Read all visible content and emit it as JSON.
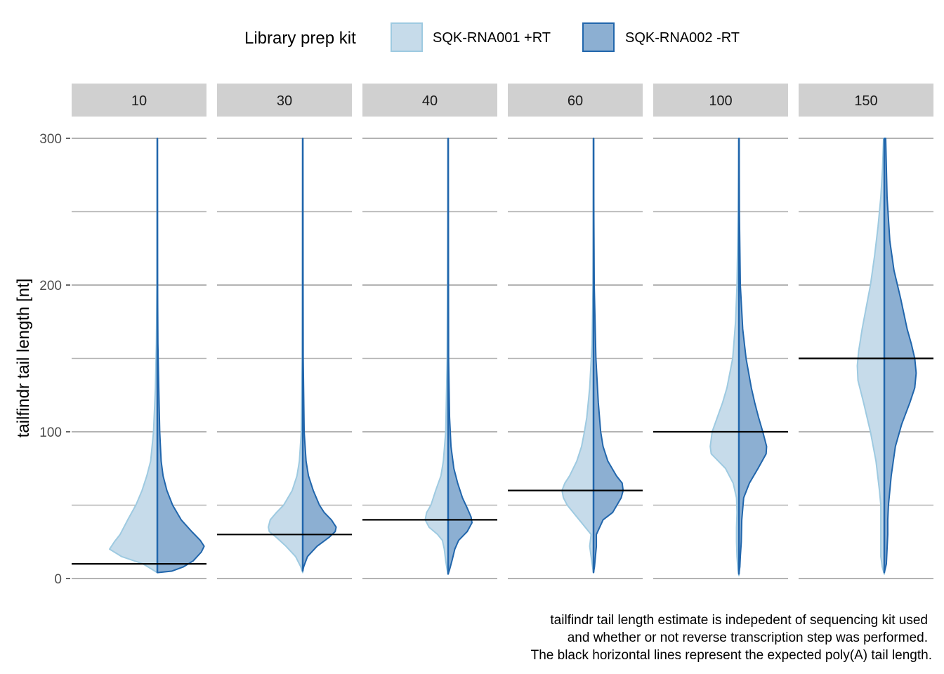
{
  "chart_data": {
    "type": "violin",
    "ylabel": "tailfindr tail length [nt]",
    "ylim": [
      0,
      300
    ],
    "y_ticks": [
      0,
      100,
      200,
      300
    ],
    "grid": true,
    "legend": {
      "title": "Library prep kit",
      "placement": "top",
      "entries": [
        "SQK-RNA001 +RT",
        "SQK-RNA002 -RT"
      ]
    },
    "facets": [
      "10",
      "30",
      "40",
      "60",
      "100",
      "150"
    ],
    "expected_lengths": [
      10,
      30,
      40,
      60,
      100,
      150
    ],
    "caption": [
      "tailfindr tail length estimate is indepedent of sequencing kit used",
      "and whether or not reverse transcription step was performed.",
      "The black horizontal lines represent the expected poly(A) tail length."
    ],
    "series": [
      {
        "name": "SQK-RNA001 +RT",
        "side": "left",
        "fill": "#c6dbea",
        "stroke": "#9ecae1",
        "profiles": [
          [
            [
              4,
              0
            ],
            [
              6,
              0.1
            ],
            [
              10,
              0.3
            ],
            [
              15,
              0.75
            ],
            [
              20,
              1.0
            ],
            [
              25,
              0.9
            ],
            [
              30,
              0.78
            ],
            [
              40,
              0.62
            ],
            [
              50,
              0.45
            ],
            [
              60,
              0.32
            ],
            [
              70,
              0.22
            ],
            [
              80,
              0.14
            ],
            [
              100,
              0.08
            ],
            [
              130,
              0.04
            ],
            [
              160,
              0.02
            ],
            [
              200,
              0.008
            ],
            [
              260,
              0.003
            ],
            [
              300,
              0
            ]
          ],
          [
            [
              4,
              0
            ],
            [
              8,
              0.04
            ],
            [
              15,
              0.15
            ],
            [
              22,
              0.35
            ],
            [
              28,
              0.55
            ],
            [
              32,
              0.7
            ],
            [
              35,
              0.72
            ],
            [
              40,
              0.68
            ],
            [
              45,
              0.55
            ],
            [
              50,
              0.4
            ],
            [
              60,
              0.22
            ],
            [
              70,
              0.12
            ],
            [
              80,
              0.07
            ],
            [
              100,
              0.03
            ],
            [
              150,
              0.01
            ],
            [
              300,
              0
            ]
          ],
          [
            [
              3,
              0
            ],
            [
              6,
              0.02
            ],
            [
              12,
              0.05
            ],
            [
              20,
              0.08
            ],
            [
              26,
              0.12
            ],
            [
              30,
              0.22
            ],
            [
              35,
              0.4
            ],
            [
              40,
              0.48
            ],
            [
              45,
              0.45
            ],
            [
              50,
              0.36
            ],
            [
              60,
              0.26
            ],
            [
              70,
              0.15
            ],
            [
              80,
              0.1
            ],
            [
              100,
              0.05
            ],
            [
              150,
              0.02
            ],
            [
              300,
              0
            ]
          ],
          [
            [
              4,
              0
            ],
            [
              8,
              0.02
            ],
            [
              15,
              0.05
            ],
            [
              22,
              0.08
            ],
            [
              30,
              0.05
            ],
            [
              40,
              0.3
            ],
            [
              50,
              0.55
            ],
            [
              55,
              0.63
            ],
            [
              60,
              0.66
            ],
            [
              65,
              0.6
            ],
            [
              70,
              0.5
            ],
            [
              80,
              0.35
            ],
            [
              90,
              0.25
            ],
            [
              100,
              0.19
            ],
            [
              110,
              0.14
            ],
            [
              130,
              0.08
            ],
            [
              160,
              0.03
            ],
            [
              200,
              0.01
            ],
            [
              260,
              0.003
            ],
            [
              300,
              0
            ]
          ],
          [
            [
              2,
              0
            ],
            [
              6,
              0.02
            ],
            [
              15,
              0.04
            ],
            [
              25,
              0.05
            ],
            [
              35,
              0.05
            ],
            [
              45,
              0.04
            ],
            [
              55,
              0.05
            ],
            [
              65,
              0.12
            ],
            [
              75,
              0.28
            ],
            [
              85,
              0.58
            ],
            [
              90,
              0.6
            ],
            [
              95,
              0.58
            ],
            [
              100,
              0.56
            ],
            [
              110,
              0.45
            ],
            [
              120,
              0.34
            ],
            [
              130,
              0.25
            ],
            [
              150,
              0.13
            ],
            [
              175,
              0.07
            ],
            [
              200,
              0.04
            ],
            [
              250,
              0.015
            ],
            [
              300,
              0.002
            ]
          ],
          [
            [
              3,
              0
            ],
            [
              8,
              0.03
            ],
            [
              15,
              0.05
            ],
            [
              25,
              0.05
            ],
            [
              35,
              0.05
            ],
            [
              50,
              0.05
            ],
            [
              60,
              0.07
            ],
            [
              80,
              0.12
            ],
            [
              100,
              0.2
            ],
            [
              120,
              0.3
            ],
            [
              135,
              0.38
            ],
            [
              145,
              0.39
            ],
            [
              155,
              0.37
            ],
            [
              170,
              0.32
            ],
            [
              185,
              0.26
            ],
            [
              200,
              0.2
            ],
            [
              220,
              0.14
            ],
            [
              240,
              0.09
            ],
            [
              260,
              0.05
            ],
            [
              280,
              0.025
            ],
            [
              300,
              0.01
            ]
          ]
        ]
      },
      {
        "name": "SQK-RNA002 -RT",
        "side": "right",
        "fill": "#8cafd2",
        "stroke": "#2166ac",
        "profiles": [
          [
            [
              4,
              0
            ],
            [
              5,
              0.3
            ],
            [
              8,
              0.55
            ],
            [
              12,
              0.75
            ],
            [
              18,
              0.92
            ],
            [
              22,
              0.98
            ],
            [
              26,
              0.9
            ],
            [
              32,
              0.72
            ],
            [
              40,
              0.5
            ],
            [
              50,
              0.32
            ],
            [
              60,
              0.2
            ],
            [
              70,
              0.12
            ],
            [
              80,
              0.08
            ],
            [
              100,
              0.05
            ],
            [
              130,
              0.03
            ],
            [
              160,
              0.012
            ],
            [
              200,
              0.005
            ],
            [
              260,
              0.002
            ],
            [
              300,
              0.001
            ]
          ],
          [
            [
              5,
              0
            ],
            [
              8,
              0.02
            ],
            [
              15,
              0.1
            ],
            [
              22,
              0.3
            ],
            [
              28,
              0.55
            ],
            [
              32,
              0.68
            ],
            [
              35,
              0.7
            ],
            [
              40,
              0.6
            ],
            [
              45,
              0.45
            ],
            [
              50,
              0.35
            ],
            [
              60,
              0.22
            ],
            [
              70,
              0.12
            ],
            [
              80,
              0.07
            ],
            [
              100,
              0.03
            ],
            [
              150,
              0.01
            ],
            [
              300,
              0.002
            ]
          ],
          [
            [
              3,
              0
            ],
            [
              6,
              0.03
            ],
            [
              12,
              0.08
            ],
            [
              20,
              0.14
            ],
            [
              26,
              0.22
            ],
            [
              32,
              0.4
            ],
            [
              38,
              0.5
            ],
            [
              42,
              0.48
            ],
            [
              48,
              0.4
            ],
            [
              55,
              0.3
            ],
            [
              65,
              0.2
            ],
            [
              75,
              0.12
            ],
            [
              90,
              0.06
            ],
            [
              110,
              0.03
            ],
            [
              150,
              0.01
            ],
            [
              300,
              0.002
            ]
          ],
          [
            [
              4,
              0
            ],
            [
              8,
              0.02
            ],
            [
              15,
              0.04
            ],
            [
              22,
              0.06
            ],
            [
              30,
              0.06
            ],
            [
              40,
              0.2
            ],
            [
              45,
              0.4
            ],
            [
              55,
              0.58
            ],
            [
              60,
              0.62
            ],
            [
              65,
              0.6
            ],
            [
              70,
              0.48
            ],
            [
              80,
              0.3
            ],
            [
              90,
              0.2
            ],
            [
              100,
              0.15
            ],
            [
              120,
              0.1
            ],
            [
              150,
              0.05
            ],
            [
              200,
              0.015
            ],
            [
              260,
              0.005
            ],
            [
              300,
              0.003
            ]
          ],
          [
            [
              3,
              0
            ],
            [
              8,
              0.02
            ],
            [
              15,
              0.03
            ],
            [
              25,
              0.05
            ],
            [
              40,
              0.06
            ],
            [
              55,
              0.1
            ],
            [
              65,
              0.22
            ],
            [
              75,
              0.4
            ],
            [
              85,
              0.57
            ],
            [
              90,
              0.58
            ],
            [
              100,
              0.5
            ],
            [
              110,
              0.41
            ],
            [
              120,
              0.33
            ],
            [
              130,
              0.26
            ],
            [
              150,
              0.15
            ],
            [
              170,
              0.08
            ],
            [
              200,
              0.03
            ],
            [
              250,
              0.01
            ],
            [
              300,
              0.005
            ]
          ],
          [
            [
              4,
              0
            ],
            [
              10,
              0.03
            ],
            [
              20,
              0.04
            ],
            [
              30,
              0.05
            ],
            [
              40,
              0.05
            ],
            [
              50,
              0.06
            ],
            [
              70,
              0.1
            ],
            [
              90,
              0.16
            ],
            [
              105,
              0.25
            ],
            [
              120,
              0.37
            ],
            [
              130,
              0.44
            ],
            [
              140,
              0.46
            ],
            [
              150,
              0.44
            ],
            [
              160,
              0.39
            ],
            [
              170,
              0.33
            ],
            [
              190,
              0.24
            ],
            [
              210,
              0.14
            ],
            [
              230,
              0.08
            ],
            [
              260,
              0.04
            ],
            [
              280,
              0.03
            ],
            [
              300,
              0.02
            ]
          ]
        ]
      }
    ]
  }
}
